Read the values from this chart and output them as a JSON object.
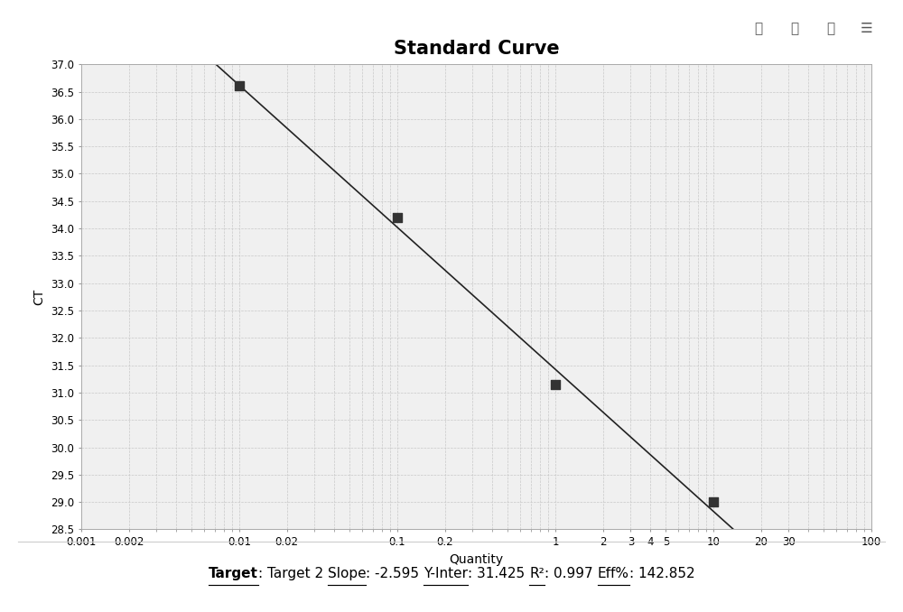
{
  "title": "Standard Curve",
  "xlabel": "Quantity",
  "ylabel": "CT",
  "data_x": [
    0.01,
    0.1,
    1,
    10
  ],
  "data_y": [
    36.6,
    34.2,
    31.15,
    29.0
  ],
  "slope": -2.595,
  "y_inter": 31.425,
  "r2": 0.997,
  "eff": 142.852,
  "ylim": [
    28.5,
    37.0
  ],
  "xticks": [
    0.001,
    0.002,
    0.01,
    0.02,
    0.1,
    0.2,
    1,
    2,
    3,
    4,
    5,
    10,
    20,
    30,
    100
  ],
  "xtick_labels": [
    "0.001",
    "0.002",
    "0.01",
    "0.02",
    "0.1",
    "0.2",
    "1",
    "2",
    "3",
    "4",
    "5",
    "10",
    "20",
    "30",
    "100"
  ],
  "ytick_step": 0.5,
  "line_color": "#222222",
  "marker_color": "#333333",
  "grid_color": "#c8c8c8",
  "background_color": "#f0f0f0",
  "plot_bg_color": "#f0f0f0",
  "title_fontsize": 15,
  "label_fontsize": 10,
  "tick_fontsize": 8.5,
  "footer_fontsize": 11
}
